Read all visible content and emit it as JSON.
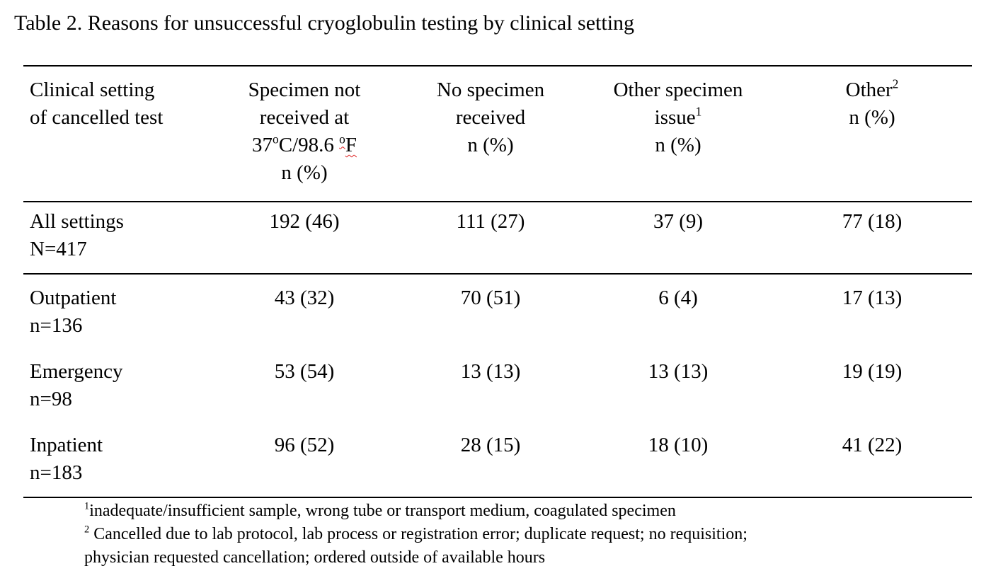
{
  "title": "Table 2. Reasons for unsuccessful cryoglobulin testing by clinical setting",
  "table": {
    "header": [
      {
        "lines": [
          [
            "Clinical setting"
          ],
          [
            "of cancelled test"
          ]
        ]
      },
      {
        "lines": [
          [
            "Specimen not"
          ],
          [
            "received at"
          ],
          [
            "37",
            {
              "sup": "o"
            },
            "C/98.6 ",
            {
              "sup": "o"
            },
            "F"
          ],
          [
            "n (%)"
          ]
        ]
      },
      {
        "lines": [
          [
            "No specimen"
          ],
          [
            "received"
          ],
          [
            "n (%)"
          ]
        ]
      },
      {
        "lines": [
          [
            "Other specimen"
          ],
          [
            "issue",
            {
              "sup": "1"
            }
          ],
          [
            "n (%)"
          ]
        ]
      },
      {
        "lines": [
          [
            "Other",
            {
              "sup": "2"
            }
          ],
          [
            "n (%)"
          ]
        ]
      }
    ],
    "rows": [
      {
        "setting": [
          "All settings",
          "N=417"
        ],
        "cells": [
          "192 (46)",
          "111 (27)",
          "37 (9)",
          "77 (18)"
        ]
      },
      {
        "setting": [
          "Outpatient",
          "n=136"
        ],
        "cells": [
          "43 (32)",
          "70 (51)",
          "6 (4)",
          "17 (13)"
        ]
      },
      {
        "setting": [
          "Emergency",
          "n=98"
        ],
        "cells": [
          "53 (54)",
          "13 (13)",
          "13 (13)",
          "19 (19)"
        ]
      },
      {
        "setting": [
          "Inpatient",
          "n=183"
        ],
        "cells": [
          "96 (52)",
          "28 (15)",
          "18 (10)",
          "41 (22)"
        ]
      }
    ]
  },
  "footnotes": [
    {
      "sup": "1",
      "lines": [
        "inadequate/insufficient sample, wrong tube or transport medium, coagulated specimen"
      ]
    },
    {
      "sup": "2",
      "lines": [
        " Cancelled due to lab protocol, lab process or registration error; duplicate request; no requisition;",
        "physician requested cancellation; ordered outside of available hours"
      ]
    }
  ]
}
